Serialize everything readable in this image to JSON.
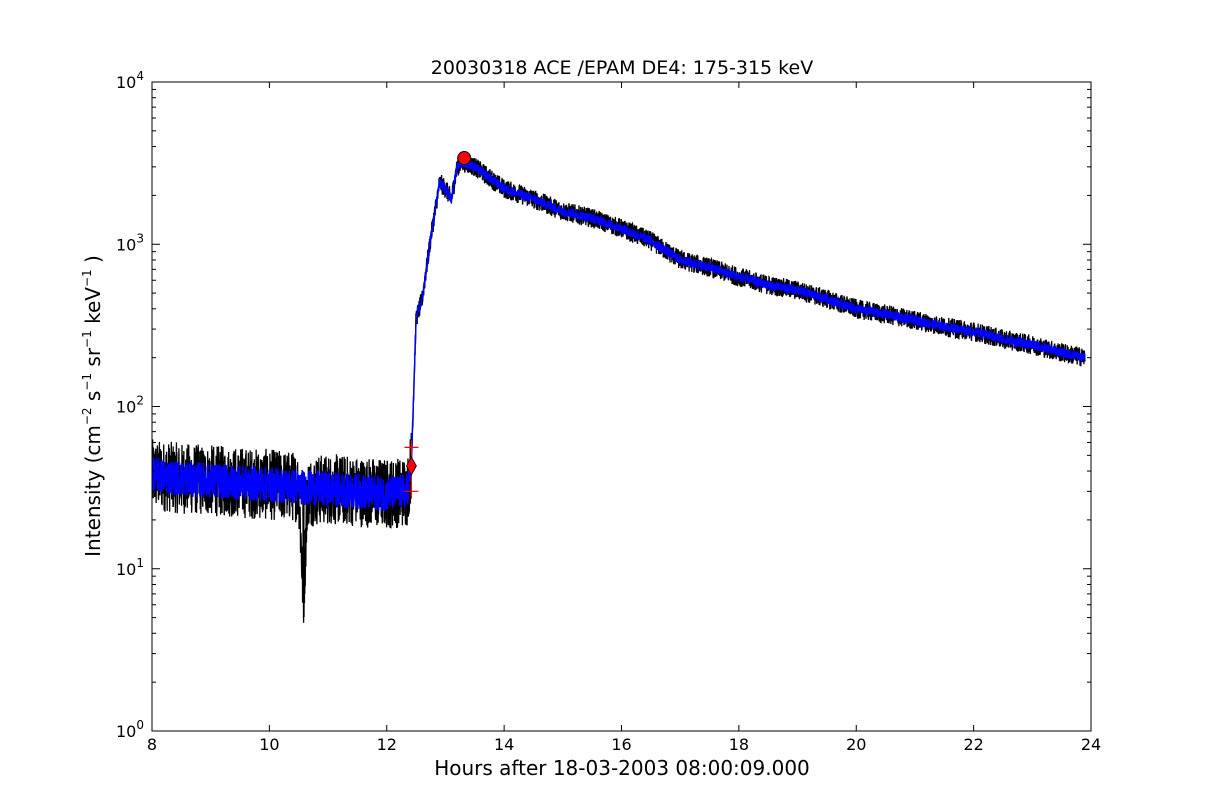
{
  "chart_data": {
    "type": "line",
    "title": "20030318 ACE /EPAM DE4: 175-315 keV",
    "xlabel": "Hours after 18-03-2003 08:00:09.000",
    "ylabel_main": "Intensity (cm",
    "ylabel_parts": [
      {
        "text": "Intensity (cm",
        "sup": false
      },
      {
        "text": "−2",
        "sup": true
      },
      {
        "text": " s",
        "sup": false
      },
      {
        "text": "−1",
        "sup": true
      },
      {
        "text": " sr",
        "sup": false
      },
      {
        "text": "−1",
        "sup": true
      },
      {
        "text": " keV",
        "sup": false
      },
      {
        "text": "−1",
        "sup": true
      },
      {
        "text": " )",
        "sup": false
      }
    ],
    "xlim": [
      8,
      24
    ],
    "ylim": [
      1,
      10000
    ],
    "yscale": "log",
    "grid": false,
    "x_ticks": [
      8,
      10,
      12,
      14,
      16,
      18,
      20,
      22,
      24
    ],
    "x_tick_labels": [
      "8",
      "10",
      "12",
      "14",
      "16",
      "18",
      "20",
      "22",
      "24"
    ],
    "y_ticks": [
      {
        "value": 1,
        "base": "10",
        "exp": "0"
      },
      {
        "value": 10,
        "base": "10",
        "exp": "1"
      },
      {
        "value": 100,
        "base": "10",
        "exp": "2"
      },
      {
        "value": 1000,
        "base": "10",
        "exp": "3"
      },
      {
        "value": 10000,
        "base": "10",
        "exp": "4"
      }
    ],
    "series": [
      {
        "color": "#000000",
        "style": "noisy-raw",
        "x": [
          8.0,
          8.5,
          9.0,
          9.5,
          10.0,
          10.5,
          10.58,
          10.65,
          11.0,
          11.5,
          12.0,
          12.35,
          12.42,
          12.5,
          12.6,
          12.75,
          12.9,
          13.0,
          13.1,
          13.2,
          13.3,
          13.5,
          14.0,
          14.5,
          15.0,
          15.5,
          16.0,
          16.5,
          17.0,
          17.5,
          18.0,
          18.5,
          19.0,
          19.5,
          20.0,
          20.5,
          21.0,
          21.5,
          22.0,
          22.5,
          23.0,
          23.5,
          23.9
        ],
        "y": [
          38,
          36,
          35,
          34,
          33,
          32,
          6.5,
          30,
          31,
          30,
          29,
          30,
          45,
          350,
          450,
          1100,
          2400,
          2200,
          1900,
          3000,
          3200,
          3000,
          2200,
          1900,
          1600,
          1450,
          1250,
          1050,
          800,
          720,
          630,
          560,
          520,
          460,
          400,
          370,
          340,
          310,
          290,
          260,
          240,
          215,
          200
        ]
      },
      {
        "color": "#0000ff",
        "style": "smoothed",
        "x": [
          8.0,
          8.5,
          9.0,
          9.5,
          10.0,
          10.5,
          11.0,
          11.5,
          12.0,
          12.35,
          12.42,
          12.5,
          12.6,
          12.75,
          12.9,
          13.0,
          13.1,
          13.2,
          13.3,
          13.5,
          14.0,
          14.5,
          15.0,
          15.5,
          16.0,
          16.5,
          17.0,
          17.5,
          18.0,
          18.5,
          19.0,
          19.5,
          20.0,
          20.5,
          21.0,
          21.5,
          22.0,
          22.5,
          23.0,
          23.5,
          23.9
        ],
        "y": [
          38,
          36,
          35,
          34,
          33,
          32,
          31,
          30,
          29,
          30,
          45,
          350,
          450,
          1100,
          2400,
          2200,
          1900,
          3000,
          3200,
          3000,
          2200,
          1900,
          1600,
          1450,
          1250,
          1050,
          800,
          720,
          630,
          560,
          520,
          460,
          400,
          370,
          340,
          310,
          290,
          260,
          240,
          215,
          200
        ]
      }
    ],
    "markers": [
      {
        "name": "onset-diamond",
        "x": 12.42,
        "y": 43,
        "color": "#ff0000",
        "shape": "diamond"
      },
      {
        "name": "peak-circle",
        "x": 13.32,
        "y": 3400,
        "color": "#ff0000",
        "shape": "circle"
      },
      {
        "name": "onset-error-upper",
        "x": 12.42,
        "y": 56,
        "color": "#ff0000",
        "shape": "plus"
      },
      {
        "name": "onset-error-lower",
        "x": 12.42,
        "y": 30,
        "color": "#ff0000",
        "shape": "plus"
      }
    ]
  }
}
